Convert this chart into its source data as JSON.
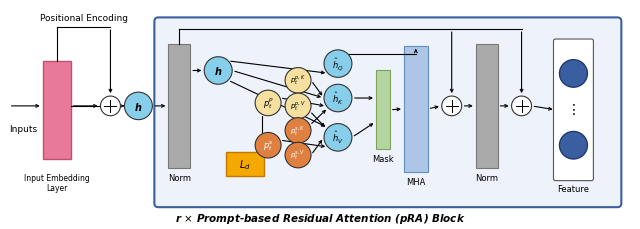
{
  "bg_color": "#ffffff",
  "title": "$\\boldsymbol{r}$ $\\times$ Prompt-based Residual Attention (pRA) Block",
  "label_inputs": "Inputs",
  "label_input_emb": "Input Embedding\nLayer",
  "label_norm1": "Norm",
  "label_mask": "Mask",
  "label_mha": "MHA",
  "label_norm2": "Norm",
  "label_feature": "Feature",
  "label_pos_enc": "Positional Encoding",
  "pRA_box_color": "#3a5fa0",
  "pRA_bg": "#eef2fa"
}
